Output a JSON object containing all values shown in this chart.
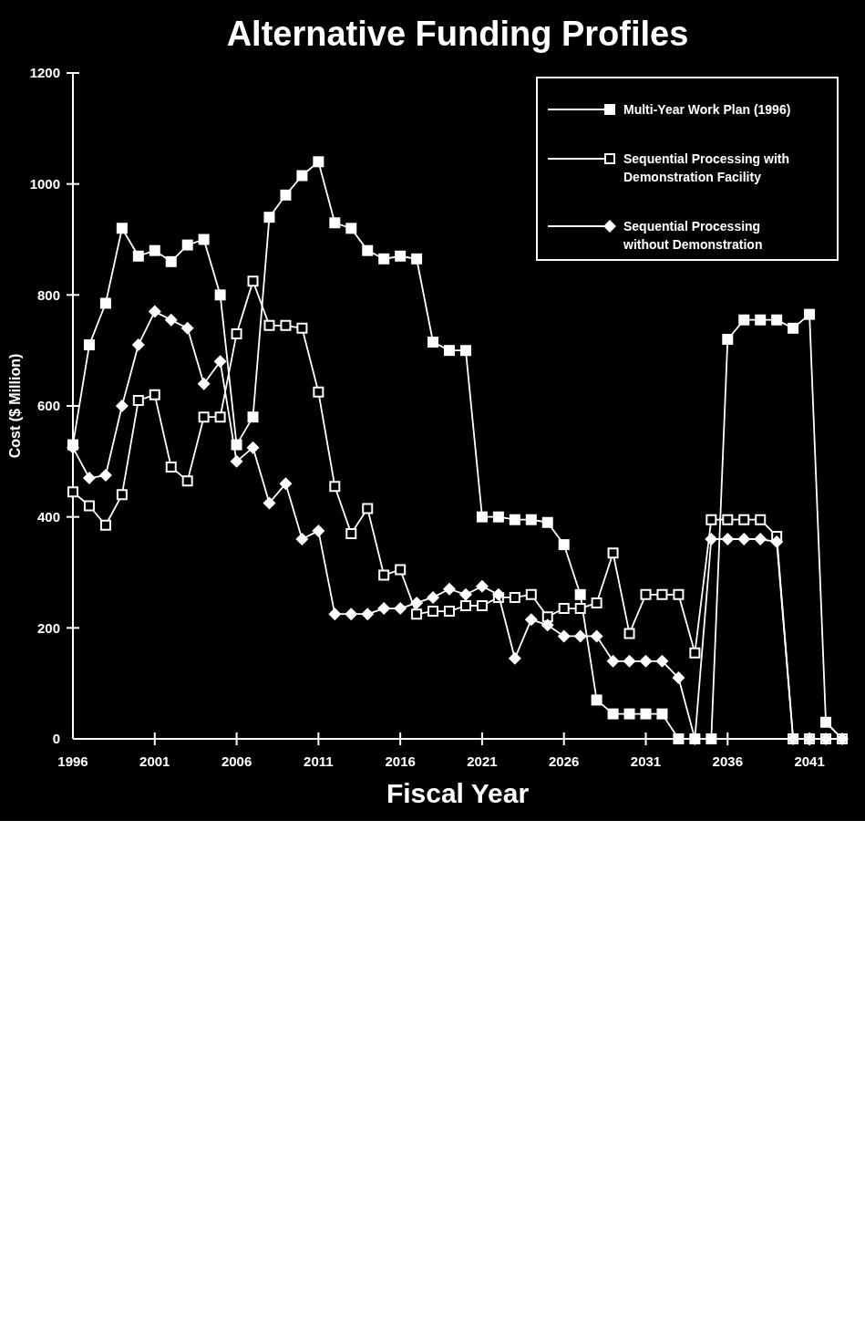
{
  "chart_data": {
    "type": "line",
    "title": "Alternative Funding Profiles",
    "xlabel": "Fiscal Year",
    "ylabel": "Cost ($ Million)",
    "x": [
      1996,
      1997,
      1998,
      1999,
      2000,
      2001,
      2002,
      2003,
      2004,
      2005,
      2006,
      2007,
      2008,
      2009,
      2010,
      2011,
      2012,
      2013,
      2014,
      2015,
      2016,
      2017,
      2018,
      2019,
      2020,
      2021,
      2022,
      2023,
      2024,
      2025,
      2026,
      2027,
      2028,
      2029,
      2030,
      2031,
      2032,
      2033,
      2034,
      2035,
      2036,
      2037,
      2038,
      2039,
      2040,
      2041,
      2042,
      2043
    ],
    "series": [
      {
        "name": "Multi-Year Work Plan (1996)",
        "color": "#ffffff",
        "marker": "square",
        "values": [
          530,
          710,
          785,
          920,
          870,
          880,
          860,
          890,
          900,
          800,
          530,
          580,
          940,
          980,
          1015,
          1040,
          930,
          920,
          880,
          865,
          870,
          865,
          715,
          700,
          700,
          400,
          400,
          395,
          395,
          390,
          350,
          260,
          70,
          45,
          45,
          45,
          45,
          0,
          0,
          0,
          720,
          755,
          755,
          755,
          740,
          765,
          30,
          0
        ]
      },
      {
        "name": "Sequential Processing with Demonstration Facility",
        "color": "#ffffff",
        "marker": "square-open",
        "values": [
          445,
          420,
          385,
          440,
          610,
          620,
          490,
          465,
          580,
          580,
          730,
          825,
          745,
          745,
          740,
          625,
          455,
          370,
          415,
          295,
          305,
          225,
          230,
          230,
          240,
          240,
          255,
          255,
          260,
          220,
          235,
          235,
          245,
          335,
          190,
          260,
          260,
          260,
          155,
          395,
          395,
          395,
          395,
          365,
          0,
          0,
          0,
          0
        ]
      },
      {
        "name": "Sequential Processing without Demonstration",
        "color": "#ffffff",
        "marker": "diamond",
        "values": [
          525,
          470,
          475,
          600,
          710,
          770,
          755,
          740,
          640,
          680,
          500,
          525,
          425,
          460,
          360,
          375,
          225,
          225,
          225,
          235,
          235,
          245,
          255,
          270,
          260,
          275,
          260,
          145,
          215,
          205,
          185,
          185,
          185,
          140,
          140,
          140,
          140,
          110,
          0,
          360,
          360,
          360,
          360,
          355,
          0,
          0,
          0,
          0
        ]
      }
    ],
    "xlim": [
      1996,
      2043
    ],
    "xticks": [
      1996,
      2001,
      2006,
      2011,
      2016,
      2021,
      2026,
      2031,
      2036,
      2041
    ],
    "ylim": [
      0,
      1200
    ],
    "yticks": [
      0,
      200,
      400,
      600,
      800,
      1000,
      1200
    ],
    "grid": false,
    "legend": "top right",
    "line_style": "solid"
  }
}
